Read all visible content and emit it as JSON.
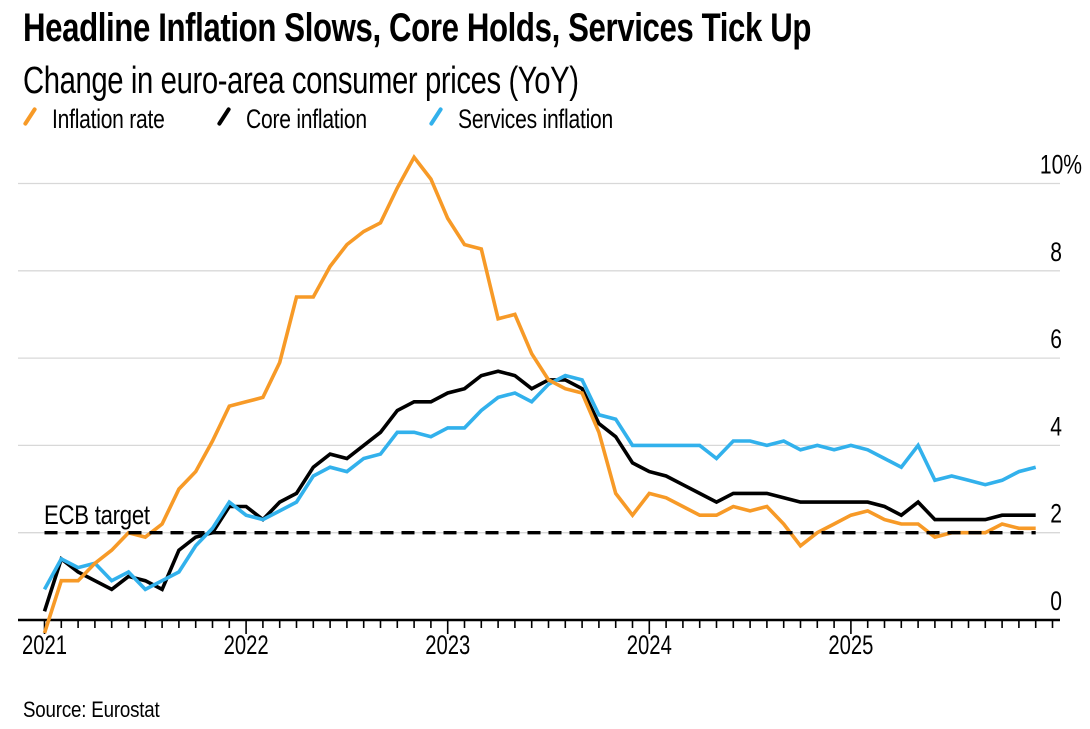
{
  "header": {
    "title": "Headline Inflation Slows, Core Holds, Services Tick Up",
    "subtitle": "Change in euro-area consumer prices (YoY)"
  },
  "legend": [
    {
      "label": "Inflation rate",
      "color": "#F79A27"
    },
    {
      "label": "Core inflation",
      "color": "#000000"
    },
    {
      "label": "Services inflation",
      "color": "#32B1EC"
    }
  ],
  "footer": {
    "source": "Source: Eurostat"
  },
  "colors": {
    "headline": "#F79A27",
    "core": "#000000",
    "services": "#32B1EC",
    "gridline": "#D8D8D8",
    "axis": "#000000",
    "target_line": "#000000",
    "background": "#FFFFFF"
  },
  "chart_data": {
    "type": "line",
    "title": "Headline Inflation Slows, Core Holds, Services Tick Up",
    "subtitle": "Change in euro-area consumer prices (YoY)",
    "x_start": "2020-12",
    "x_end": "2025-11",
    "frequency": "monthly",
    "x_tick_labels": [
      "2021",
      "2022",
      "2023",
      "2024",
      "2025"
    ],
    "y_ticks": [
      0,
      2,
      4,
      6,
      8,
      10
    ],
    "y_tick_labels": [
      "0",
      "2",
      "4",
      "6",
      "8",
      "10%"
    ],
    "ylim": [
      -0.5,
      10.75
    ],
    "grid": "horizontal",
    "legend_position": "top-left",
    "target_line": {
      "label": "ECB target",
      "value": 2,
      "style": "dashed"
    },
    "series": [
      {
        "name": "Inflation rate",
        "color": "#F79A27",
        "values": [
          -0.3,
          0.9,
          0.9,
          1.3,
          1.6,
          2.0,
          1.9,
          2.2,
          3.0,
          3.4,
          4.1,
          4.9,
          5.0,
          5.1,
          5.9,
          7.4,
          7.4,
          8.1,
          8.6,
          8.9,
          9.1,
          9.9,
          10.6,
          10.1,
          9.2,
          8.6,
          8.5,
          6.9,
          7.0,
          6.1,
          5.5,
          5.3,
          5.2,
          4.3,
          2.9,
          2.4,
          2.9,
          2.8,
          2.6,
          2.4,
          2.4,
          2.6,
          2.5,
          2.6,
          2.2,
          1.7,
          2.0,
          2.2,
          2.4,
          2.5,
          2.3,
          2.2,
          2.2,
          1.9,
          2.0,
          2.0,
          2.0,
          2.2,
          2.1,
          2.1
        ]
      },
      {
        "name": "Core inflation",
        "color": "#000000",
        "values": [
          0.2,
          1.4,
          1.1,
          0.9,
          0.7,
          1.0,
          0.9,
          0.7,
          1.6,
          1.9,
          2.0,
          2.6,
          2.6,
          2.3,
          2.7,
          2.9,
          3.5,
          3.8,
          3.7,
          4.0,
          4.3,
          4.8,
          5.0,
          5.0,
          5.2,
          5.3,
          5.6,
          5.7,
          5.6,
          5.3,
          5.5,
          5.5,
          5.3,
          4.5,
          4.2,
          3.6,
          3.4,
          3.3,
          3.1,
          2.9,
          2.7,
          2.9,
          2.9,
          2.9,
          2.8,
          2.7,
          2.7,
          2.7,
          2.7,
          2.7,
          2.6,
          2.4,
          2.7,
          2.3,
          2.3,
          2.3,
          2.3,
          2.4,
          2.4,
          2.4
        ]
      },
      {
        "name": "Services inflation",
        "color": "#32B1EC",
        "values": [
          0.7,
          1.4,
          1.2,
          1.3,
          0.9,
          1.1,
          0.7,
          0.9,
          1.1,
          1.7,
          2.1,
          2.7,
          2.4,
          2.3,
          2.5,
          2.7,
          3.3,
          3.5,
          3.4,
          3.7,
          3.8,
          4.3,
          4.3,
          4.2,
          4.4,
          4.4,
          4.8,
          5.1,
          5.2,
          5.0,
          5.4,
          5.6,
          5.5,
          4.7,
          4.6,
          4.0,
          4.0,
          4.0,
          4.0,
          4.0,
          3.7,
          4.1,
          4.1,
          4.0,
          4.1,
          3.9,
          4.0,
          3.9,
          4.0,
          3.9,
          3.7,
          3.5,
          4.0,
          3.2,
          3.3,
          3.2,
          3.1,
          3.2,
          3.4,
          3.5
        ]
      }
    ]
  }
}
